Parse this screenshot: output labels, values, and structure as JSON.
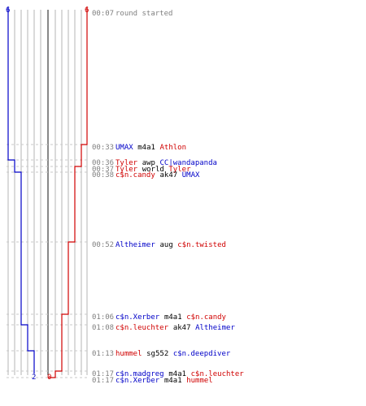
{
  "score": {
    "blue_start": "6",
    "red_start": "6",
    "blue_end": "2",
    "red_end": "0"
  },
  "colors": {
    "blue": "#0000c8",
    "red": "#d00000",
    "grid": "#b4b4b4",
    "center_line": "#555555",
    "time_text": "#808080"
  },
  "events": [
    {
      "time": "00:07",
      "parts": [
        {
          "text": "round started",
          "team": "neutral-gray"
        }
      ]
    },
    {
      "time": "00:33",
      "parts": [
        {
          "text": "UMAX",
          "team": "blue"
        },
        {
          "text": "m4a1",
          "team": "weapon"
        },
        {
          "text": "Athlon",
          "team": "red"
        }
      ]
    },
    {
      "time": "00:36",
      "parts": [
        {
          "text": "Tyler",
          "team": "red"
        },
        {
          "text": "awp",
          "team": "weapon"
        },
        {
          "text": "CC|wandapanda",
          "team": "blue"
        }
      ]
    },
    {
      "time": "00:37",
      "parts": [
        {
          "text": "Tyler",
          "team": "red"
        },
        {
          "text": "world",
          "team": "weapon"
        },
        {
          "text": "Tyler",
          "team": "red"
        }
      ]
    },
    {
      "time": "00:38",
      "parts": [
        {
          "text": "c$n.candy",
          "team": "red"
        },
        {
          "text": "ak47",
          "team": "weapon"
        },
        {
          "text": "UMAX",
          "team": "blue"
        }
      ]
    },
    {
      "time": "00:52",
      "parts": [
        {
          "text": "Altheimer",
          "team": "blue"
        },
        {
          "text": "aug",
          "team": "weapon"
        },
        {
          "text": "c$n.twisted",
          "team": "red"
        }
      ]
    },
    {
      "time": "01:06",
      "parts": [
        {
          "text": "c$n.Xerber",
          "team": "blue"
        },
        {
          "text": "m4a1",
          "team": "weapon"
        },
        {
          "text": "c$n.candy",
          "team": "red"
        }
      ]
    },
    {
      "time": "01:08",
      "parts": [
        {
          "text": "c$n.leuchter",
          "team": "red"
        },
        {
          "text": "ak47",
          "team": "weapon"
        },
        {
          "text": "Altheimer",
          "team": "blue"
        }
      ]
    },
    {
      "time": "01:13",
      "parts": [
        {
          "text": "hummel",
          "team": "red"
        },
        {
          "text": "sg552",
          "team": "weapon"
        },
        {
          "text": "c$n.deepdiver",
          "team": "blue"
        }
      ]
    },
    {
      "time": "01:17",
      "parts": [
        {
          "text": "c$n.madgreg",
          "team": "blue"
        },
        {
          "text": "m4a1",
          "team": "weapon"
        },
        {
          "text": "c$n.leuchter",
          "team": "red"
        }
      ]
    },
    {
      "time": "01:17",
      "parts": [
        {
          "text": "c$n.Xerber",
          "team": "blue"
        },
        {
          "text": "m4a1",
          "team": "weapon"
        },
        {
          "text": "hummel",
          "team": "red"
        }
      ]
    }
  ]
}
